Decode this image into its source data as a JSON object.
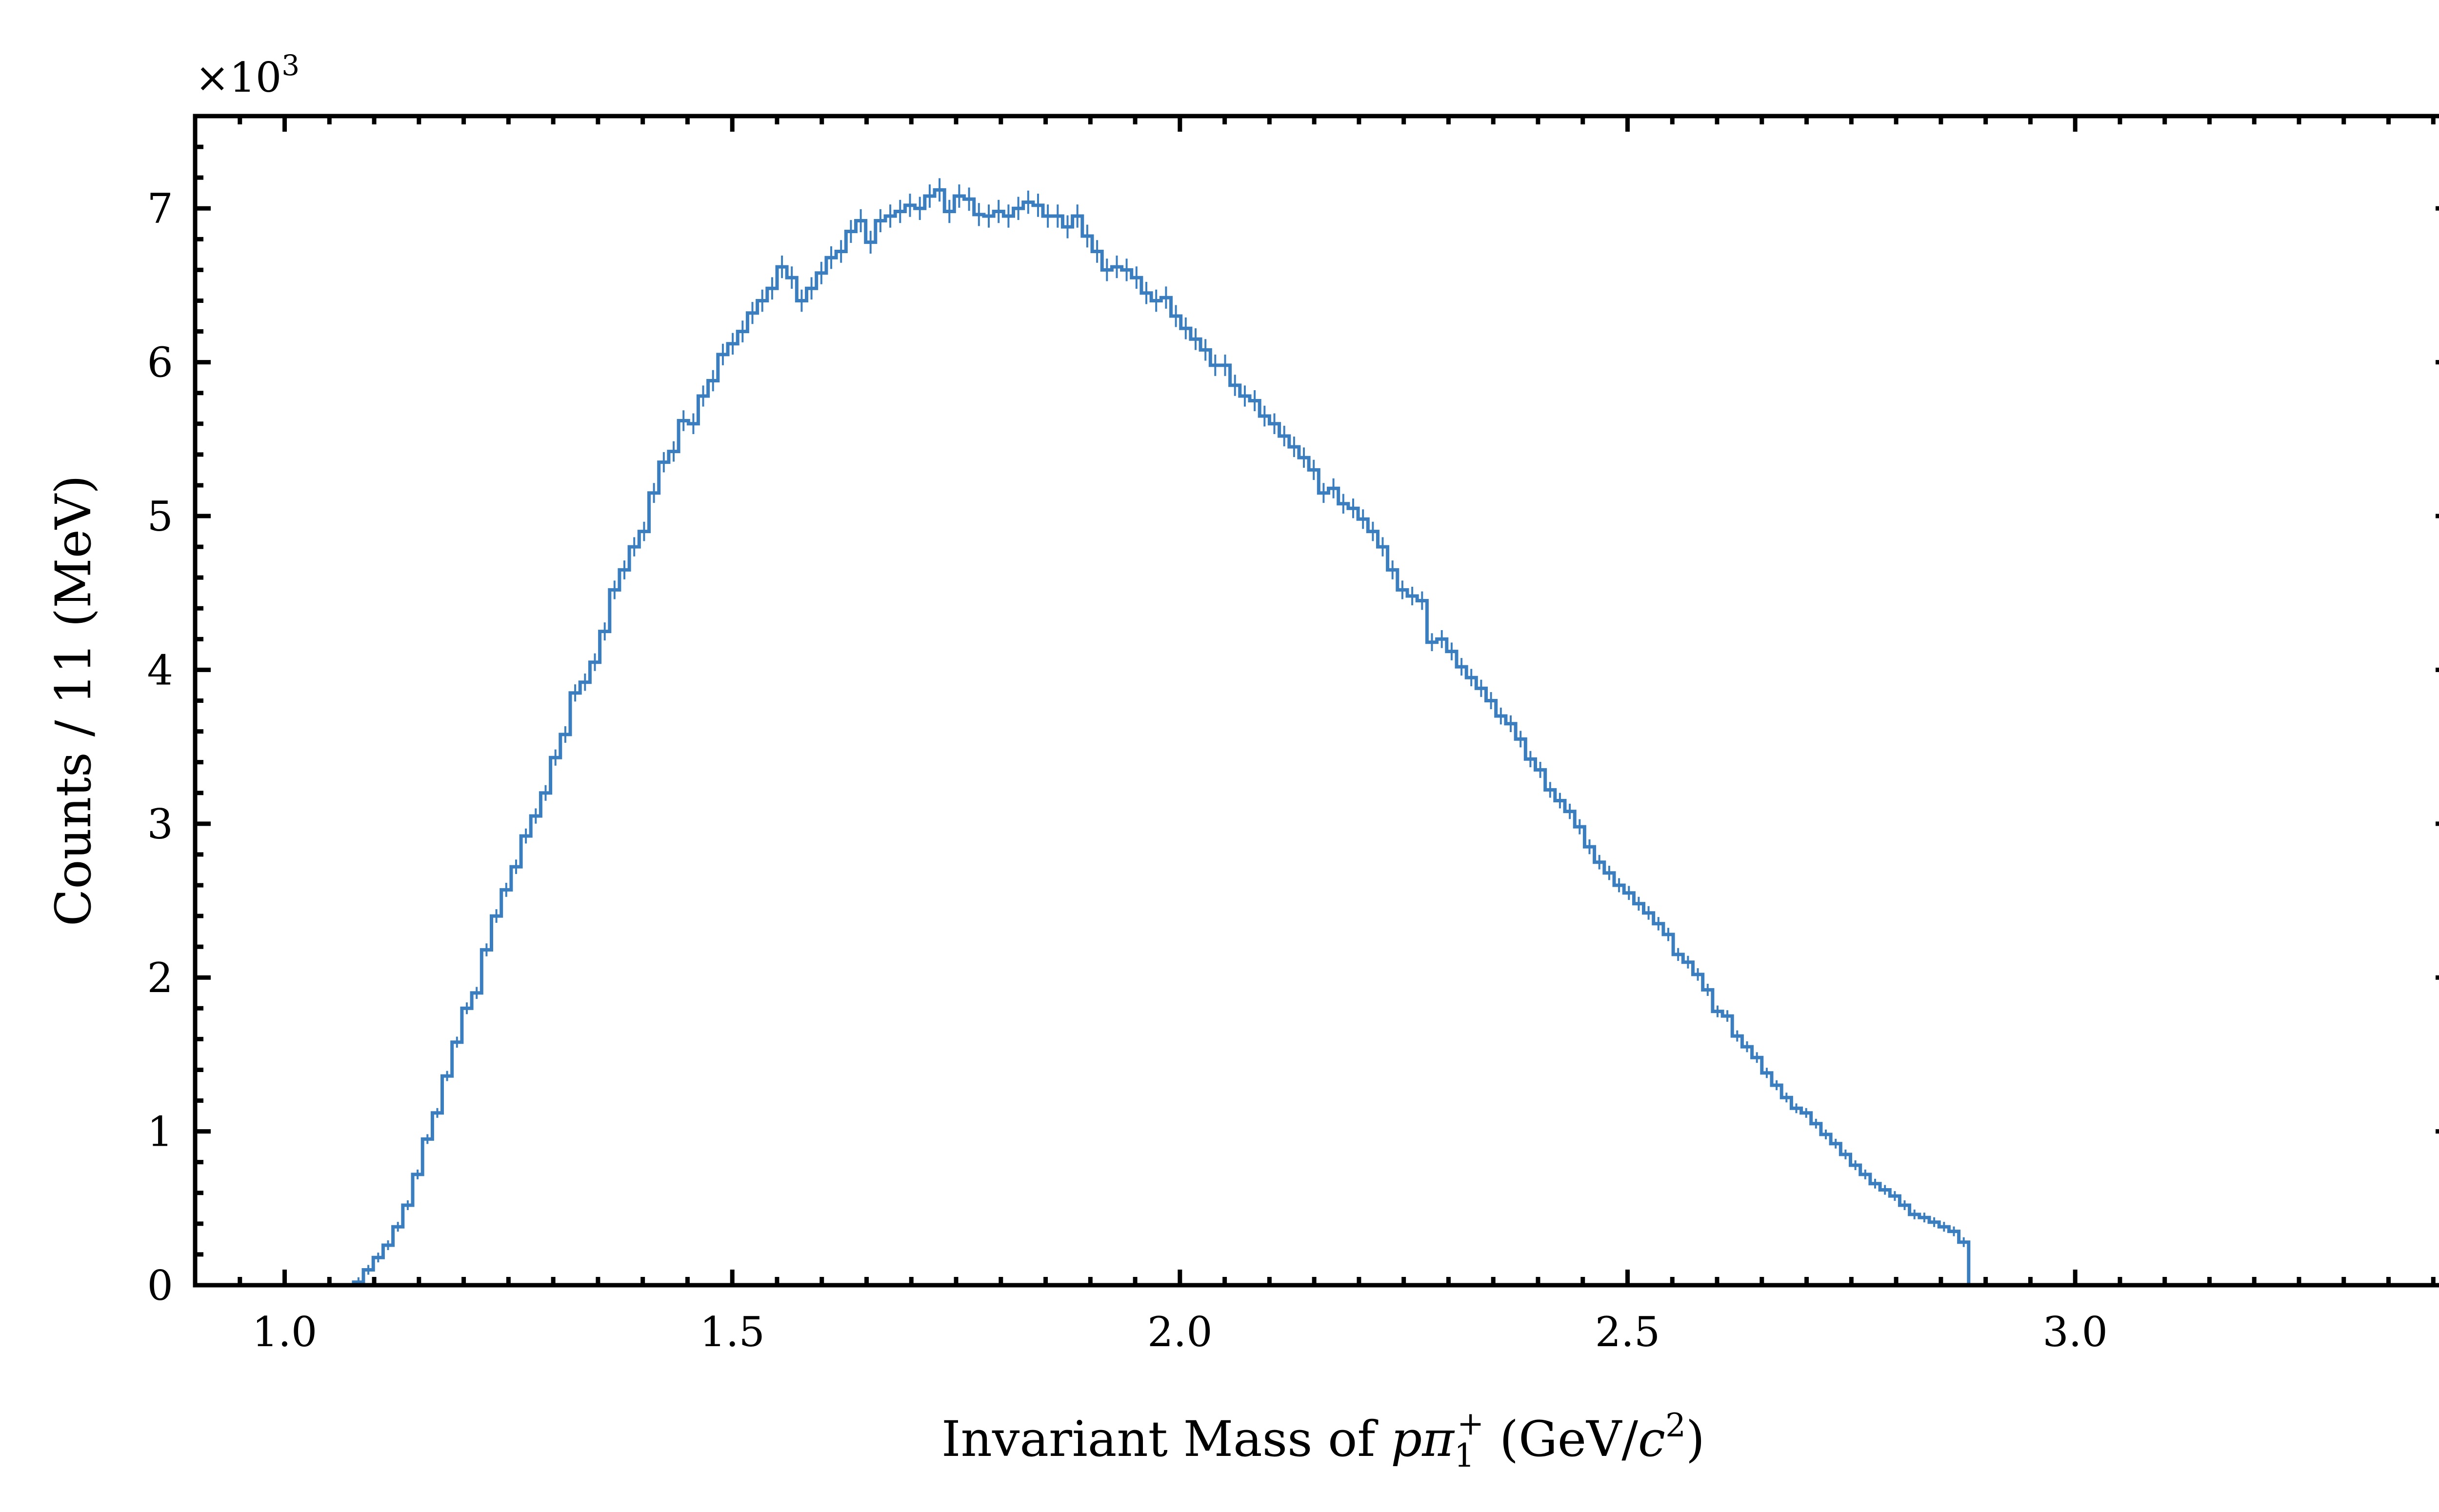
{
  "chart_data": {
    "type": "histogram",
    "xlabel": "Invariant Mass of pπ1+ (GeV/c2)",
    "xlabel_parts": {
      "pre": "Invariant Mass of ",
      "p": "p",
      "pi": "π",
      "sub": "1",
      "sup": "+",
      "mid": " (GeV/",
      "c": "c",
      "pow": "2",
      "post": ")"
    },
    "ylabel": "Counts / 11 (MeV)",
    "y_multiplier": {
      "base": "×10",
      "exponent": "3"
    },
    "xlim": [
      0.9,
      3.42
    ],
    "ylim": [
      0,
      7.6
    ],
    "x_ticks": [
      1.0,
      1.5,
      2.0,
      2.5,
      3.0
    ],
    "x_tick_labels": [
      "1.0",
      "1.5",
      "2.0",
      "2.5",
      "3.0"
    ],
    "y_ticks": [
      0,
      1,
      2,
      3,
      4,
      5,
      6,
      7
    ],
    "y_tick_labels": [
      "0",
      "1",
      "2",
      "3",
      "4",
      "5",
      "6",
      "7"
    ],
    "grid": false,
    "bin_start": 1.0,
    "bin_width": 0.011,
    "line_color": "#3a7ebf",
    "series": [
      {
        "counts": [
          0,
          0,
          0,
          0,
          0,
          0,
          0,
          0.02,
          0.1,
          0.18,
          0.26,
          0.38,
          0.52,
          0.72,
          0.95,
          1.12,
          1.36,
          1.58,
          1.8,
          1.9,
          2.18,
          2.4,
          2.57,
          2.72,
          2.92,
          3.05,
          3.2,
          3.43,
          3.58,
          3.85,
          3.92,
          4.05,
          4.25,
          4.52,
          4.65,
          4.8,
          4.9,
          5.15,
          5.35,
          5.42,
          5.62,
          5.6,
          5.78,
          5.88,
          6.05,
          6.12,
          6.2,
          6.32,
          6.4,
          6.48,
          6.62,
          6.55,
          6.4,
          6.48,
          6.58,
          6.68,
          6.72,
          6.85,
          6.92,
          6.78,
          6.92,
          6.95,
          6.98,
          7.02,
          7.0,
          7.08,
          7.12,
          6.98,
          7.08,
          7.06,
          6.96,
          6.95,
          6.98,
          6.95,
          7.0,
          7.04,
          7.02,
          6.95,
          6.95,
          6.88,
          6.95,
          6.82,
          6.72,
          6.6,
          6.62,
          6.6,
          6.55,
          6.45,
          6.4,
          6.42,
          6.3,
          6.22,
          6.15,
          6.08,
          5.98,
          5.98,
          5.85,
          5.78,
          5.75,
          5.65,
          5.6,
          5.52,
          5.45,
          5.38,
          5.3,
          5.15,
          5.18,
          5.08,
          5.05,
          4.98,
          4.9,
          4.8,
          4.65,
          4.52,
          4.48,
          4.45,
          4.18,
          4.2,
          4.12,
          4.02,
          3.95,
          3.88,
          3.8,
          3.7,
          3.65,
          3.55,
          3.42,
          3.35,
          3.22,
          3.15,
          3.08,
          2.98,
          2.85,
          2.75,
          2.68,
          2.6,
          2.55,
          2.48,
          2.42,
          2.35,
          2.28,
          2.15,
          2.1,
          2.02,
          1.92,
          1.78,
          1.75,
          1.62,
          1.55,
          1.48,
          1.38,
          1.3,
          1.22,
          1.15,
          1.12,
          1.05,
          0.98,
          0.92,
          0.85,
          0.78,
          0.72,
          0.66,
          0.62,
          0.58,
          0.52,
          0.46,
          0.44,
          0.41,
          0.38,
          0.35,
          0.28
        ]
      }
    ]
  }
}
